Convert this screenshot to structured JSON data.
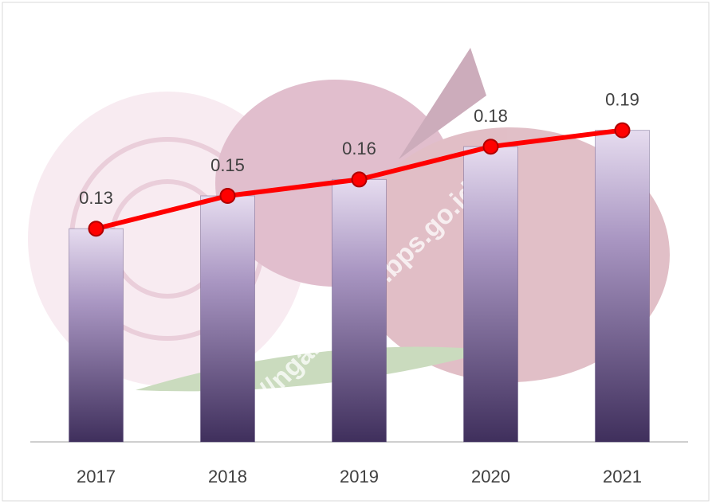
{
  "chart_data": {
    "type": "combo",
    "categories": [
      "2017",
      "2018",
      "2019",
      "2020",
      "2021"
    ],
    "series": [
      {
        "type": "bar",
        "color": "#5b4a7a",
        "values": [
          0.13,
          0.15,
          0.16,
          0.18,
          0.19
        ]
      },
      {
        "type": "line",
        "color": "#ff0000",
        "values": [
          0.13,
          0.15,
          0.16,
          0.18,
          0.19
        ]
      }
    ],
    "ylim": [
      0,
      0.2
    ]
  },
  "watermark": "https://nganjukkab.bps.go.id"
}
